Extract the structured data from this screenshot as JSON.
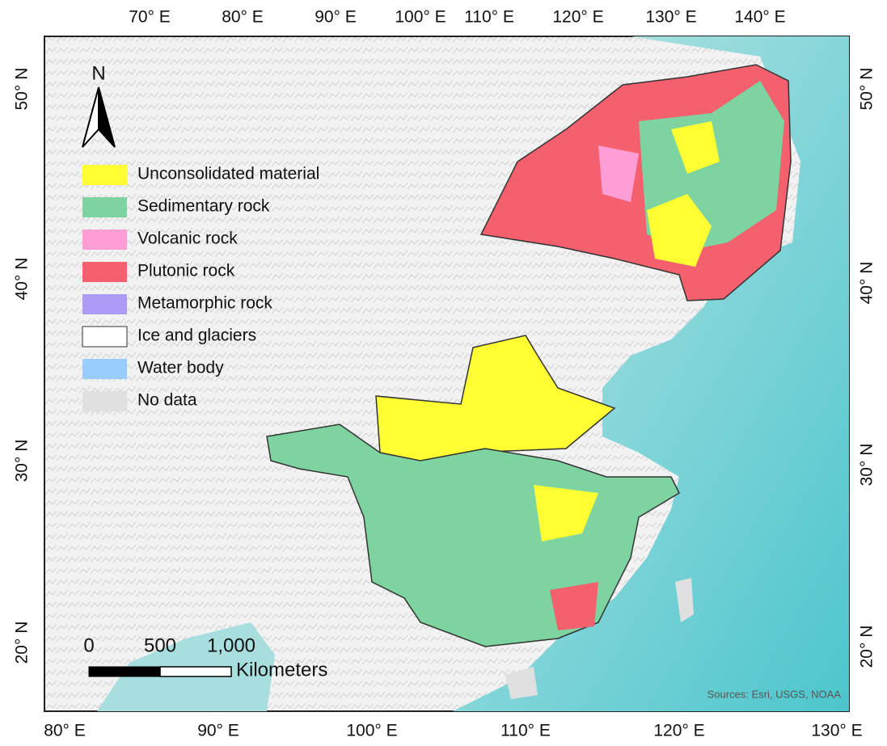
{
  "map": {
    "top_axis": [
      "70° E",
      "80° E",
      "90° E",
      "100° E",
      "110° E",
      "120° E",
      "130° E",
      "140° E"
    ],
    "bottom_axis": [
      "80° E",
      "90° E",
      "100° E",
      "110° E",
      "120° E",
      "130° E"
    ],
    "left_axis": [
      "50° N",
      "40° N",
      "30° N",
      "20° N"
    ],
    "right_axis": [
      "50° N",
      "40° N",
      "30° N",
      "20° N"
    ],
    "north_arrow": "N",
    "legend": [
      {
        "label": "Unconsolidated material",
        "color": "#ffff33"
      },
      {
        "label": "Sedimentary rock",
        "color": "#7ed4a0"
      },
      {
        "label": "Volcanic rock",
        "color": "#ff9ed6"
      },
      {
        "label": "Plutonic rock",
        "color": "#f4606e"
      },
      {
        "label": "Metamorphic rock",
        "color": "#ad9cf5"
      },
      {
        "label": "Ice and glaciers",
        "color": "#ffffff"
      },
      {
        "label": "Water body",
        "color": "#99ccff"
      },
      {
        "label": "No data",
        "color": "#e0e0e0"
      }
    ],
    "scale_bar": {
      "labels": [
        "0",
        "500",
        "1,000"
      ],
      "unit": "Kilometers"
    },
    "sources": "Sources: Esri, USGS, NOAA"
  }
}
